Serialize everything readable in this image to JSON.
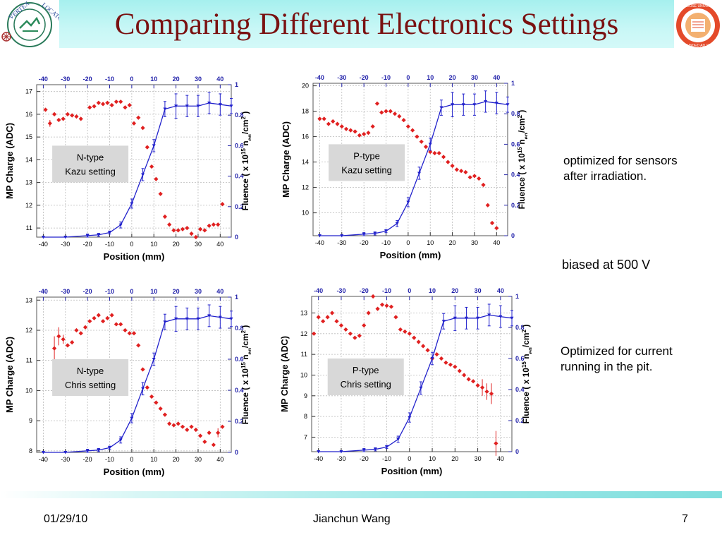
{
  "header": {
    "title": "Comparing Different Electronics Settings",
    "left_logo_text": [
      "VERTEX",
      "LOCATOR"
    ],
    "right_logo_text": [
      "SYRACUSE UNIVERSITY",
      "FOUNDED AD 1870"
    ]
  },
  "notes": {
    "note1": [
      "optimized for sensors",
      "after irradiation."
    ],
    "note2": "biased at 500 V",
    "note3": [
      "Optimized for current",
      "running in the pit."
    ]
  },
  "footer": {
    "date": "01/29/10",
    "author": "Jianchun Wang",
    "page": "7"
  },
  "colors": {
    "title": "#7a1111",
    "charge_series": "#e02020",
    "fluence_series": "#2222cc",
    "right_axis": "#2222aa"
  },
  "chart_data": [
    {
      "type": "scatter",
      "label_box": [
        "N-type",
        "Kazu setting"
      ],
      "xlabel": "Position (mm)",
      "ylabel": "MP Charge (ADC)",
      "y2label": "Fluence ( x 10",
      "y2label_sup": "15",
      "y2label_tail": " n",
      "y2label_sub": "eq",
      "y2label_end": "/cm",
      "y2label_sup2": "2",
      "y2label_close": " )",
      "xlim": [
        -43,
        45
      ],
      "ylim": [
        10.6,
        17.3
      ],
      "y2lim": [
        0,
        1.0
      ],
      "xticks": [
        -40,
        -30,
        -20,
        -10,
        0,
        10,
        20,
        30,
        40
      ],
      "yticks": [
        11,
        12,
        13,
        14,
        15,
        16,
        17
      ],
      "y2ticks": [
        0,
        0.2,
        0.4,
        0.6,
        0.8,
        1
      ],
      "grid": true,
      "series": [
        {
          "name": "MP Charge",
          "axis": "left",
          "style": "points",
          "x": [
            -39,
            -37,
            -35,
            -33,
            -31,
            -29,
            -27,
            -25,
            -23,
            -19,
            -17,
            -15,
            -13,
            -11,
            -9,
            -7,
            -5,
            -3,
            -1,
            1,
            3,
            5,
            7,
            9,
            11,
            13,
            15,
            17,
            19,
            21,
            23,
            25,
            27,
            29,
            31,
            33,
            35,
            37,
            39,
            41
          ],
          "y": [
            16.2,
            15.6,
            16.0,
            15.75,
            15.8,
            16.0,
            15.95,
            15.9,
            15.8,
            16.3,
            16.35,
            16.5,
            16.45,
            16.5,
            16.4,
            16.55,
            16.55,
            16.3,
            16.4,
            15.6,
            15.85,
            15.4,
            14.55,
            13.7,
            13.15,
            12.5,
            11.5,
            11.15,
            10.9,
            10.9,
            10.95,
            11.0,
            10.75,
            10.6,
            10.95,
            10.9,
            11.1,
            11.15,
            11.15,
            12.05
          ],
          "err": [
            0.1,
            0.15,
            0.1,
            0.1,
            0.08,
            0.08,
            0.08,
            0.08,
            0.08,
            0.08,
            0.08,
            0.08,
            0.08,
            0.08,
            0.08,
            0.08,
            0.08,
            0.08,
            0.08,
            0.12,
            0.08,
            0.08,
            0.08,
            0.08,
            0.08,
            0.08,
            0.08,
            0.08,
            0.08,
            0.08,
            0.08,
            0.08,
            0.08,
            0.08,
            0.08,
            0.08,
            0.08,
            0.08,
            0.08,
            0.12
          ]
        },
        {
          "name": "Fluence",
          "axis": "right",
          "style": "line",
          "x": [
            -40,
            -30,
            -20,
            -15,
            -10,
            -5,
            0,
            5,
            10,
            15,
            20,
            25,
            30,
            35,
            40,
            45
          ],
          "y": [
            0.0,
            0.0,
            0.01,
            0.015,
            0.03,
            0.08,
            0.22,
            0.41,
            0.6,
            0.84,
            0.86,
            0.86,
            0.86,
            0.88,
            0.87,
            0.86
          ],
          "err": [
            0,
            0,
            0.01,
            0.01,
            0.01,
            0.02,
            0.03,
            0.04,
            0.04,
            0.05,
            0.08,
            0.07,
            0.07,
            0.07,
            0.07,
            0.05
          ]
        }
      ]
    },
    {
      "type": "scatter",
      "label_box": [
        "P-type",
        "Kazu setting"
      ],
      "xlabel": "Position (mm)",
      "ylabel": "MP Charge (ADC)",
      "y2label": "Fluence ( x 10",
      "y2label_sup": "15",
      "y2label_tail": " n",
      "y2label_sub": "eq",
      "y2label_end": "/cm",
      "y2label_sup2": "2",
      "y2label_close": " )",
      "xlim": [
        -43,
        45
      ],
      "ylim": [
        8.2,
        20.2
      ],
      "y2lim": [
        0,
        1.0
      ],
      "xticks": [
        -40,
        -30,
        -20,
        -10,
        0,
        10,
        20,
        30,
        40
      ],
      "yticks": [
        10,
        12,
        14,
        16,
        18,
        20
      ],
      "y2ticks": [
        0,
        0.2,
        0.4,
        0.6,
        0.8,
        1
      ],
      "grid": true,
      "series": [
        {
          "name": "MP Charge",
          "axis": "left",
          "style": "points",
          "x": [
            -40,
            -38,
            -36,
            -34,
            -32,
            -30,
            -28,
            -26,
            -24,
            -22,
            -20,
            -18,
            -16,
            -14,
            -12,
            -10,
            -8,
            -6,
            -4,
            -2,
            0,
            2,
            4,
            6,
            8,
            10,
            12,
            14,
            16,
            18,
            20,
            22,
            24,
            26,
            28,
            30,
            32,
            34,
            36,
            38,
            40
          ],
          "y": [
            17.4,
            17.4,
            17.0,
            17.2,
            17.0,
            16.8,
            16.6,
            16.5,
            16.4,
            16.1,
            16.2,
            16.3,
            16.8,
            18.6,
            17.9,
            18.0,
            18.0,
            17.8,
            17.6,
            17.3,
            16.8,
            16.5,
            16.0,
            15.6,
            15.2,
            14.8,
            14.7,
            14.7,
            14.4,
            14.0,
            13.7,
            13.4,
            13.3,
            13.2,
            12.8,
            12.9,
            12.7,
            12.2,
            10.6,
            9.2,
            8.8
          ],
          "err": [
            0.1,
            0.1,
            0.1,
            0.1,
            0.1,
            0.1,
            0.1,
            0.1,
            0.1,
            0.1,
            0.1,
            0.1,
            0.1,
            0.1,
            0.1,
            0.1,
            0.1,
            0.1,
            0.1,
            0.1,
            0.1,
            0.1,
            0.1,
            0.1,
            0.1,
            0.1,
            0.1,
            0.1,
            0.1,
            0.1,
            0.1,
            0.1,
            0.1,
            0.1,
            0.1,
            0.1,
            0.1,
            0.1,
            0.1,
            0.1,
            0.1
          ]
        },
        {
          "name": "Fluence",
          "axis": "right",
          "style": "line",
          "x": [
            -40,
            -30,
            -20,
            -15,
            -10,
            -5,
            0,
            5,
            10,
            15,
            20,
            25,
            30,
            35,
            40,
            45
          ],
          "y": [
            0.0,
            0.0,
            0.01,
            0.015,
            0.03,
            0.08,
            0.22,
            0.41,
            0.6,
            0.84,
            0.86,
            0.86,
            0.86,
            0.88,
            0.87,
            0.86
          ],
          "err": [
            0,
            0,
            0.01,
            0.01,
            0.01,
            0.02,
            0.03,
            0.04,
            0.04,
            0.05,
            0.08,
            0.07,
            0.07,
            0.07,
            0.07,
            0.05
          ]
        }
      ]
    },
    {
      "type": "scatter",
      "label_box": [
        "N-type",
        "Chris setting"
      ],
      "xlabel": "Position (mm)",
      "ylabel": "MP Charge (ADC)",
      "y2label": "Fluence ( x 10",
      "y2label_sup": "15",
      "y2label_tail": " n",
      "y2label_sub": "eq",
      "y2label_end": "/cm",
      "y2label_sup2": "2",
      "y2label_close": " )",
      "xlim": [
        -43,
        45
      ],
      "ylim": [
        7.95,
        13.1
      ],
      "y2lim": [
        0,
        1.0
      ],
      "xticks": [
        -40,
        -30,
        -20,
        -10,
        0,
        10,
        20,
        30,
        40
      ],
      "yticks": [
        8,
        9,
        10,
        11,
        12,
        13
      ],
      "y2ticks": [
        0,
        0.2,
        0.4,
        0.6,
        0.8,
        1
      ],
      "grid": true,
      "series": [
        {
          "name": "MP Charge",
          "axis": "left",
          "style": "points",
          "x": [
            -35,
            -33,
            -31,
            -29,
            -27,
            -25,
            -23,
            -21,
            -19,
            -17,
            -15,
            -13,
            -11,
            -9,
            -7,
            -5,
            -3,
            -1,
            1,
            3,
            5,
            7,
            9,
            11,
            13,
            15,
            17,
            19,
            21,
            23,
            25,
            27,
            29,
            31,
            33,
            35,
            37,
            39,
            41
          ],
          "y": [
            11.4,
            11.8,
            11.7,
            11.5,
            11.6,
            12.0,
            11.9,
            12.1,
            12.3,
            12.4,
            12.5,
            12.3,
            12.4,
            12.5,
            12.2,
            12.2,
            12.0,
            11.9,
            11.9,
            11.5,
            10.7,
            10.1,
            9.8,
            9.6,
            9.4,
            9.2,
            8.9,
            8.85,
            8.9,
            8.8,
            8.7,
            8.8,
            8.7,
            8.5,
            8.3,
            8.6,
            8.2,
            8.6,
            8.8
          ],
          "err": [
            0.4,
            0.3,
            0.15,
            0.1,
            0.1,
            0.08,
            0.08,
            0.08,
            0.08,
            0.08,
            0.08,
            0.08,
            0.08,
            0.08,
            0.08,
            0.08,
            0.08,
            0.08,
            0.08,
            0.08,
            0.08,
            0.1,
            0.08,
            0.08,
            0.08,
            0.08,
            0.08,
            0.08,
            0.08,
            0.08,
            0.08,
            0.08,
            0.08,
            0.08,
            0.1,
            0.1,
            0.1,
            0.15,
            0.1
          ]
        },
        {
          "name": "Fluence",
          "axis": "right",
          "style": "line",
          "x": [
            -40,
            -30,
            -20,
            -15,
            -10,
            -5,
            0,
            5,
            10,
            15,
            20,
            25,
            30,
            35,
            40,
            45
          ],
          "y": [
            0.0,
            0.0,
            0.01,
            0.015,
            0.03,
            0.08,
            0.22,
            0.41,
            0.6,
            0.84,
            0.86,
            0.86,
            0.86,
            0.88,
            0.87,
            0.86
          ],
          "err": [
            0,
            0,
            0.01,
            0.01,
            0.01,
            0.02,
            0.03,
            0.04,
            0.04,
            0.05,
            0.08,
            0.07,
            0.07,
            0.07,
            0.07,
            0.05
          ]
        }
      ]
    },
    {
      "type": "scatter",
      "label_box": [
        "P-type",
        "Chris setting"
      ],
      "xlabel": "Position (mm)",
      "ylabel": "MP Charge (ADC)",
      "y2label": "Fluence ( x 10",
      "y2label_sup": "15",
      "y2label_tail": " n",
      "y2label_sub": "eq",
      "y2label_end": "/cm",
      "y2label_sup2": "2",
      "y2label_close": " )",
      "xlim": [
        -43,
        45
      ],
      "ylim": [
        6.3,
        13.8
      ],
      "y2lim": [
        0,
        1.0
      ],
      "xticks": [
        -40,
        -30,
        -20,
        -10,
        0,
        10,
        20,
        30,
        40
      ],
      "yticks": [
        7,
        8,
        9,
        10,
        11,
        12,
        13
      ],
      "y2ticks": [
        0,
        0.2,
        0.4,
        0.6,
        0.8,
        1
      ],
      "grid": true,
      "series": [
        {
          "name": "MP Charge",
          "axis": "left",
          "style": "points",
          "x": [
            -42,
            -40,
            -38,
            -36,
            -34,
            -32,
            -30,
            -28,
            -26,
            -24,
            -22,
            -20,
            -18,
            -16,
            -14,
            -12,
            -10,
            -8,
            -6,
            -4,
            -2,
            0,
            2,
            4,
            6,
            8,
            10,
            12,
            14,
            16,
            18,
            20,
            22,
            24,
            26,
            28,
            30,
            32,
            34,
            36,
            38
          ],
          "y": [
            12.0,
            12.8,
            12.6,
            12.8,
            13.0,
            12.6,
            12.4,
            12.2,
            12.0,
            11.8,
            11.9,
            12.4,
            13.0,
            13.8,
            13.2,
            13.4,
            13.35,
            13.3,
            12.8,
            12.2,
            12.1,
            12.0,
            11.8,
            11.6,
            11.4,
            11.2,
            10.8,
            11.0,
            10.8,
            10.6,
            10.5,
            10.4,
            10.2,
            10.0,
            9.8,
            9.7,
            9.5,
            9.4,
            9.2,
            9.1,
            6.7
          ],
          "err": [
            0.1,
            0.1,
            0.1,
            0.1,
            0.1,
            0.1,
            0.1,
            0.1,
            0.1,
            0.1,
            0.1,
            0.1,
            0.1,
            0.1,
            0.1,
            0.1,
            0.1,
            0.1,
            0.1,
            0.1,
            0.1,
            0.1,
            0.1,
            0.1,
            0.1,
            0.1,
            0.1,
            0.1,
            0.1,
            0.1,
            0.1,
            0.1,
            0.1,
            0.1,
            0.1,
            0.1,
            0.1,
            0.4,
            0.4,
            0.5,
            0.6
          ]
        },
        {
          "name": "Fluence",
          "axis": "right",
          "style": "line",
          "x": [
            -40,
            -30,
            -20,
            -15,
            -10,
            -5,
            0,
            5,
            10,
            15,
            20,
            25,
            30,
            35,
            40,
            45
          ],
          "y": [
            0.0,
            0.0,
            0.01,
            0.015,
            0.03,
            0.08,
            0.22,
            0.41,
            0.6,
            0.84,
            0.86,
            0.86,
            0.86,
            0.88,
            0.87,
            0.86
          ],
          "err": [
            0,
            0,
            0.01,
            0.01,
            0.01,
            0.02,
            0.03,
            0.04,
            0.04,
            0.05,
            0.08,
            0.07,
            0.07,
            0.07,
            0.07,
            0.05
          ]
        }
      ]
    }
  ]
}
